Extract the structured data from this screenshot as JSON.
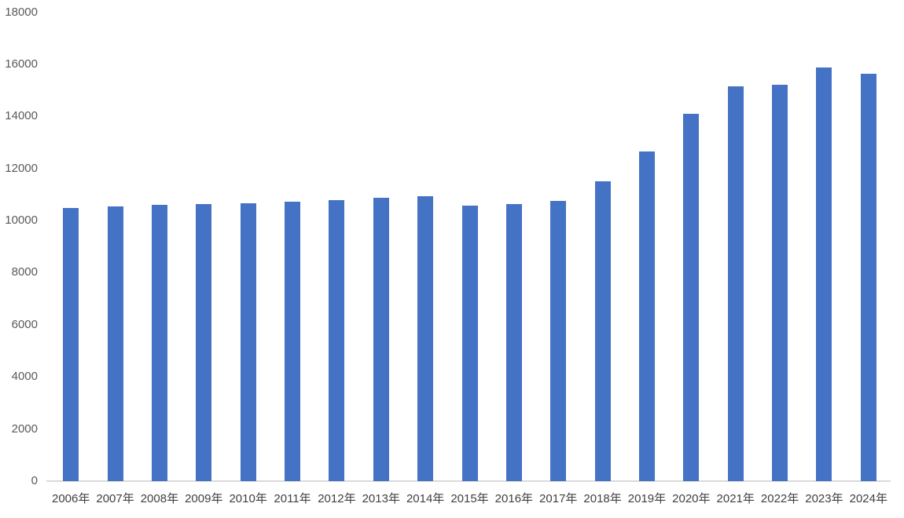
{
  "chart_data": {
    "type": "bar",
    "title": "",
    "xlabel": "",
    "ylabel": "",
    "categories": [
      "2006年",
      "2007年",
      "2008年",
      "2009年",
      "2010年",
      "2011年",
      "2012年",
      "2013年",
      "2014年",
      "2015年",
      "2016年",
      "2017年",
      "2018年",
      "2019年",
      "2020年",
      "2021年",
      "2022年",
      "2023年",
      "2024年"
    ],
    "values": [
      10470,
      10550,
      10600,
      10640,
      10660,
      10710,
      10800,
      10870,
      10940,
      10570,
      10640,
      10760,
      11520,
      12660,
      14110,
      15140,
      15200,
      15890,
      15650
    ],
    "yticks": [
      0,
      2000,
      4000,
      6000,
      8000,
      10000,
      12000,
      14000,
      16000,
      18000
    ],
    "ylim": [
      0,
      18000
    ],
    "grid": false,
    "legend": false,
    "bar_color": "#4472C4",
    "axis_line_color": "#D9D9D9",
    "ytick_label_color": "#595959",
    "xtick_label_color": "#404040"
  }
}
